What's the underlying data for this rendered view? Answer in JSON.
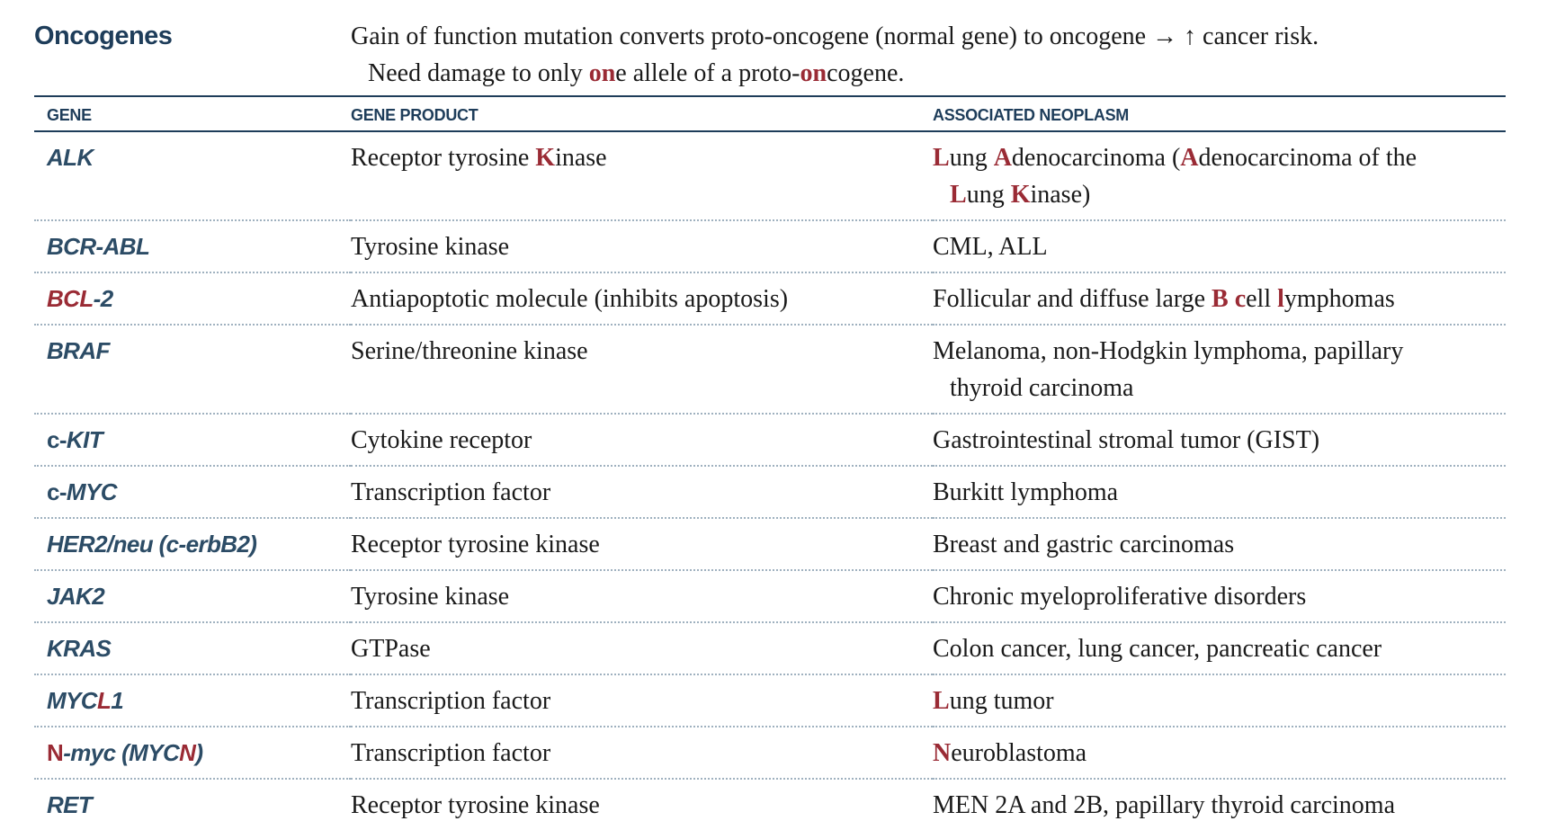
{
  "topic": "Oncogenes",
  "intro": {
    "line1": "Gain of function mutation converts proto-oncogene (normal gene) to oncogene → ↑ cancer risk.",
    "line2_a": "Need damage to only ",
    "line2_hl1": "on",
    "line2_b": "e allele of a proto-",
    "line2_hl2": "on",
    "line2_c": "cogene."
  },
  "headers": {
    "gene": "GENE",
    "product": "GENE PRODUCT",
    "neoplasm": "ASSOCIATED NEOPLASM"
  },
  "rows": [
    {
      "gene": "ALK",
      "product_a": "Receptor tyrosine ",
      "product_hl": "K",
      "product_b": "inase",
      "neo": [
        {
          "t": "L",
          "hl": true
        },
        {
          "t": "ung ",
          "hl": false
        },
        {
          "t": "A",
          "hl": true
        },
        {
          "t": "denocarcinoma (",
          "hl": false
        },
        {
          "t": "A",
          "hl": true
        },
        {
          "t": "denocarcinoma of the",
          "hl": false
        }
      ],
      "neo2": [
        {
          "t": "L",
          "hl": true
        },
        {
          "t": "ung ",
          "hl": false
        },
        {
          "t": "K",
          "hl": true
        },
        {
          "t": "inase)",
          "hl": false
        }
      ]
    },
    {
      "gene": "BCR-ABL",
      "product": "Tyrosine kinase",
      "neo_text": "CML, ALL"
    },
    {
      "gene_a": "BCL",
      "gene_b": "-2",
      "product": "Antiapoptotic molecule (inhibits apoptosis)",
      "neo": [
        {
          "t": "Follicular and diffuse large ",
          "hl": false
        },
        {
          "t": "B",
          "hl": true
        },
        {
          "t": " ",
          "hl": false
        },
        {
          "t": "c",
          "hl": true
        },
        {
          "t": "ell ",
          "hl": false
        },
        {
          "t": "l",
          "hl": true
        },
        {
          "t": "ymphomas",
          "hl": false
        }
      ]
    },
    {
      "gene": "BRAF",
      "product": "Serine/threonine kinase",
      "neo_text": "Melanoma, non-Hodgkin lymphoma, papillary",
      "neo_text2": "thyroid carcinoma"
    },
    {
      "gene_a": "c-",
      "gene_b": "KIT",
      "product": "Cytokine receptor",
      "neo_text": "Gastrointestinal stromal tumor (GIST)"
    },
    {
      "gene_a": "c-",
      "gene_b": "MYC",
      "product": "Transcription factor",
      "neo_text": "Burkitt lymphoma"
    },
    {
      "gene": "HER2/neu (c-erbB2)",
      "product": "Receptor tyrosine kinase",
      "neo_text": "Breast and gastric carcinomas"
    },
    {
      "gene": "JAK2",
      "product": "Tyrosine kinase",
      "neo_text": "Chronic myeloproliferative disorders"
    },
    {
      "gene": "KRAS",
      "product": "GTPase",
      "neo_text": "Colon cancer, lung cancer, pancreatic cancer"
    },
    {
      "gene_a": "MYC",
      "gene_hl": "L",
      "gene_b": "1",
      "product": "Transcription factor",
      "neo_hl": "L",
      "neo_rest": "ung tumor"
    },
    {
      "gene_hl": "N",
      "gene_a": "-myc (MYC",
      "gene_hl2": "N",
      "gene_b": ")",
      "product": "Transcription factor",
      "neo_hl": "N",
      "neo_rest": "euroblastoma"
    },
    {
      "gene": "RET",
      "product": "Receptor tyrosine kinase",
      "neo_text": "MEN 2A and 2B, papillary thyroid carcinoma"
    }
  ],
  "colors": {
    "heading": "#1e3d5a",
    "highlight": "#9a2b35",
    "text": "#1a1a1a",
    "rule_dotted": "#9fb1bf"
  }
}
